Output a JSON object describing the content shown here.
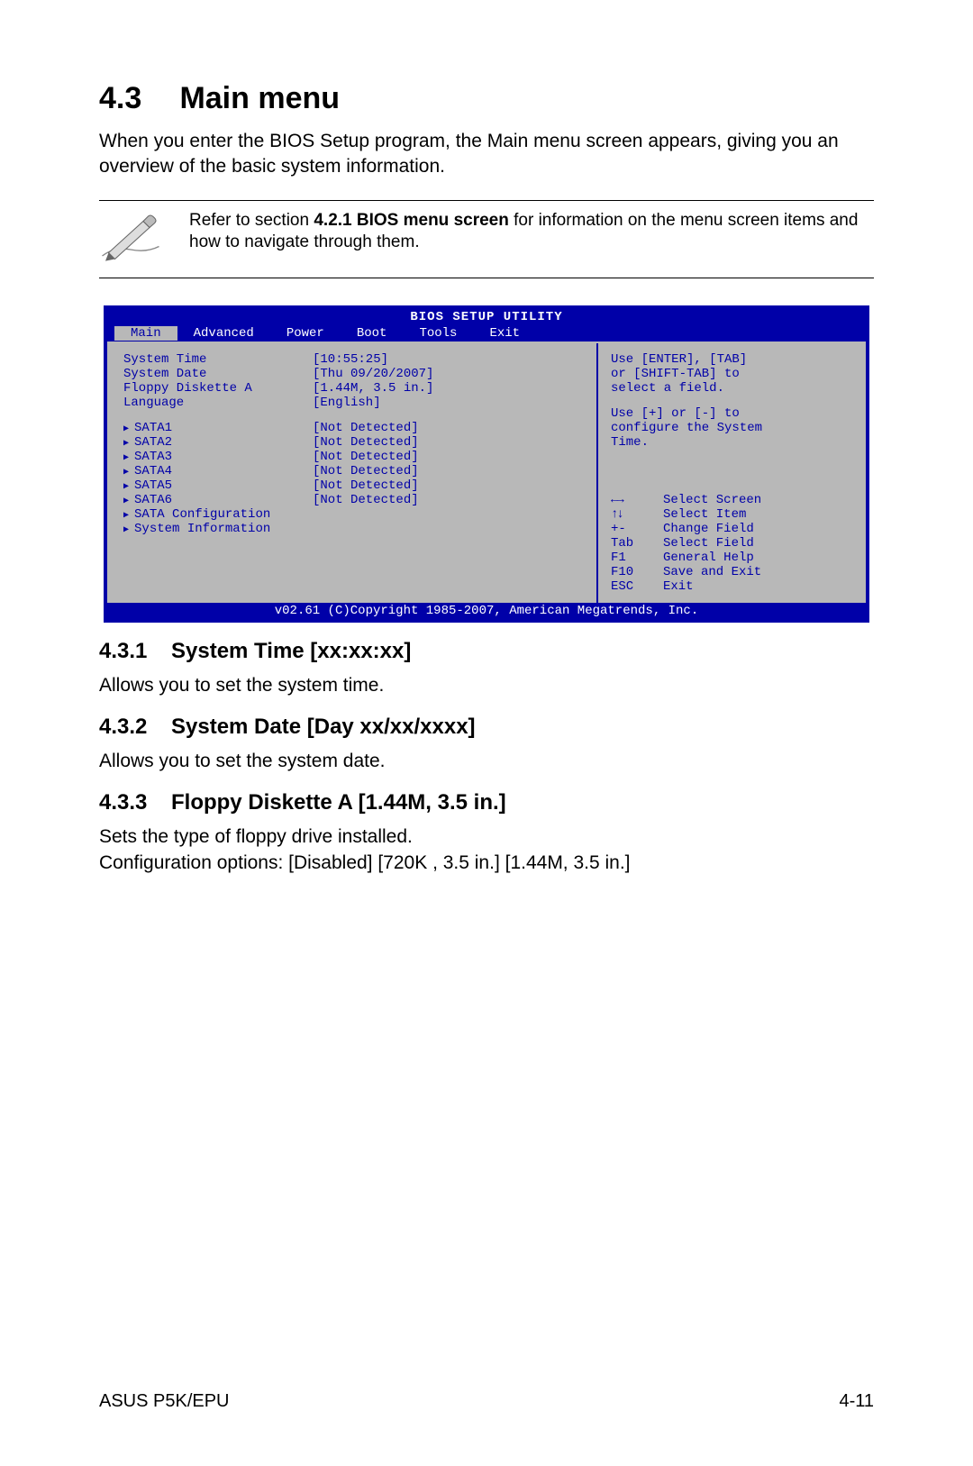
{
  "section": {
    "number": "4.3",
    "title": "Main menu"
  },
  "intro": "When you enter the BIOS Setup program, the Main menu screen appears, giving you an overview of the basic system information.",
  "note": {
    "pre": "Refer to section ",
    "bold": "4.2.1  BIOS menu screen",
    "post": " for information on the menu screen items and how to navigate through them."
  },
  "bios": {
    "title": "BIOS SETUP UTILITY",
    "tabs": [
      "Main",
      "Advanced",
      "Power",
      "Boot",
      "Tools",
      "Exit"
    ],
    "fields": [
      {
        "label": "System Time",
        "value": "[10:55:25]"
      },
      {
        "label": "System Date",
        "value": "[Thu 09/20/2007]"
      },
      {
        "label": "Floppy Diskette A",
        "value": "[1.44M, 3.5 in.]"
      },
      {
        "label": "Language",
        "value": "[English]"
      }
    ],
    "sata": [
      {
        "label": "SATA1",
        "value": "[Not Detected]"
      },
      {
        "label": "SATA2",
        "value": "[Not Detected]"
      },
      {
        "label": "SATA3",
        "value": "[Not Detected]"
      },
      {
        "label": "SATA4",
        "value": "[Not Detected]"
      },
      {
        "label": "SATA5",
        "value": "[Not Detected]"
      },
      {
        "label": "SATA6",
        "value": "[Not Detected]"
      }
    ],
    "extra": [
      "SATA Configuration",
      "System Information"
    ],
    "help1": "Use [ENTER], [TAB]\nor [SHIFT-TAB] to\nselect a field.",
    "help2": "Use [+] or [-] to\nconfigure the System\nTime.",
    "keys": [
      {
        "k": "arrows-lr",
        "t": "Select Screen"
      },
      {
        "k": "arrows-ud",
        "t": "Select Item"
      },
      {
        "k": "+-",
        "t": "Change Field"
      },
      {
        "k": "Tab",
        "t": "Select Field"
      },
      {
        "k": "F1",
        "t": "General Help"
      },
      {
        "k": "F10",
        "t": "Save and Exit"
      },
      {
        "k": "ESC",
        "t": "Exit"
      }
    ],
    "copyright": "v02.61 (C)Copyright 1985-2007, American Megatrends, Inc."
  },
  "subs": [
    {
      "num": "4.3.1",
      "title": "System Time [xx:xx:xx]",
      "body": "Allows you to set the system time."
    },
    {
      "num": "4.3.2",
      "title": "System Date [Day xx/xx/xxxx]",
      "body": "Allows you to set the system date."
    },
    {
      "num": "4.3.3",
      "title": "Floppy Diskette A [1.44M, 3.5 in.]",
      "body": "Sets the type of floppy drive installed.\nConfiguration options: [Disabled] [720K , 3.5 in.] [1.44M, 3.5 in.]"
    }
  ],
  "footer": {
    "left": "ASUS P5K/EPU",
    "right": "4-11"
  }
}
